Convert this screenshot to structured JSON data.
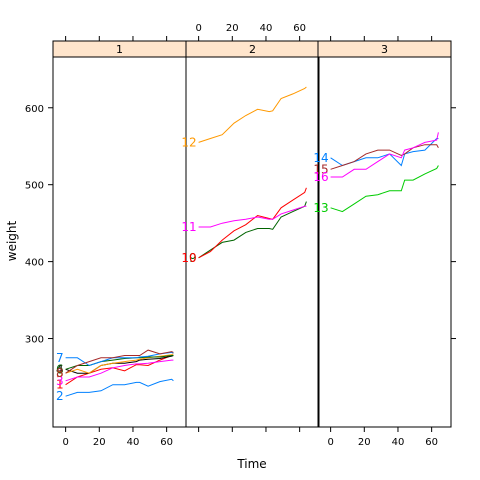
{
  "chart_data": {
    "type": "line",
    "xlabel": "Time",
    "ylabel": "weight",
    "xlim": [
      -7.5,
      71.5
    ],
    "ylim": [
      185,
      666
    ],
    "x_ticks": [
      0,
      20,
      40,
      60
    ],
    "y_ticks": [
      300,
      400,
      500,
      600
    ],
    "x": [
      0,
      7,
      14,
      21,
      28,
      35,
      42,
      44,
      49,
      56,
      63,
      64
    ],
    "panels": [
      {
        "strip": "1",
        "series": [
          {
            "name": "1",
            "color": "#ff0000",
            "values": [
              240,
              250,
              255,
              260,
              262,
              258,
              266,
              266,
              265,
              272,
              278,
              278
            ]
          },
          {
            "name": "2",
            "color": "#0080ff",
            "values": [
              225,
              230,
              230,
              232,
              240,
              240,
              243,
              243,
              238,
              244,
              247,
              245
            ]
          },
          {
            "name": "3",
            "color": "#ff00ff",
            "values": [
              245,
              250,
              250,
              255,
              262,
              265,
              267,
              267,
              268,
              270,
              272,
              272
            ]
          },
          {
            "name": "4",
            "color": "#000000",
            "values": [
              260,
              255,
              255,
              265,
              268,
              268,
              270,
              272,
              273,
              274,
              277,
              278
            ]
          },
          {
            "name": "5",
            "color": "#ff9900",
            "values": [
              255,
              260,
              255,
              265,
              268,
              270,
              272,
              273,
              275,
              277,
              279,
              280
            ]
          },
          {
            "name": "6",
            "color": "#006400",
            "values": [
              260,
              265,
              265,
              270,
              272,
              274,
              275,
              275,
              276,
              276,
              278,
              278
            ]
          },
          {
            "name": "7",
            "color": "#0080ff",
            "values": [
              275,
              275,
              265,
              270,
              275,
              275,
              275,
              276,
              277,
              280,
              282,
              281
            ]
          },
          {
            "name": "8",
            "color": "#a52a2a",
            "values": [
              255,
              265,
              270,
              275,
              275,
              278,
              278,
              278,
              285,
              280,
              283,
              282
            ]
          }
        ]
      },
      {
        "strip": "2",
        "series": [
          {
            "name": "9",
            "color": "#006400",
            "values": [
              405,
              415,
              425,
              428,
              438,
              443,
              443,
              442,
              458,
              465,
              472,
              478
            ]
          },
          {
            "name": "10",
            "color": "#ff0000",
            "values": [
              405,
              413,
              428,
              440,
              448,
              460,
              456,
              455,
              470,
              480,
              490,
              496
            ]
          },
          {
            "name": "11",
            "color": "#ff00ff",
            "values": [
              445,
              445,
              450,
              453,
              455,
              458,
              455,
              455,
              462,
              467,
              472,
              472
            ]
          },
          {
            "name": "12",
            "color": "#ff9900",
            "values": [
              555,
              560,
              565,
              580,
              590,
              598,
              595,
              596,
              612,
              618,
              625,
              627
            ]
          }
        ]
      },
      {
        "strip": "3",
        "series": [
          {
            "name": "13",
            "color": "#00cc00",
            "values": [
              470,
              465,
              475,
              485,
              487,
              492,
              492,
              506,
              506,
              514,
              521,
              525
            ]
          },
          {
            "name": "14",
            "color": "#0080ff",
            "values": [
              535,
              525,
              530,
              535,
              535,
              540,
              525,
              540,
              543,
              545,
              560,
              560
            ]
          },
          {
            "name": "15",
            "color": "#a52a2a",
            "values": [
              520,
              525,
              530,
              540,
              545,
              545,
              538,
              540,
              548,
              552,
              552,
              548
            ]
          },
          {
            "name": "16",
            "color": "#ff00ff",
            "values": [
              510,
              510,
              520,
              520,
              530,
              540,
              535,
              545,
              548,
              555,
              558,
              568
            ]
          }
        ]
      }
    ]
  }
}
